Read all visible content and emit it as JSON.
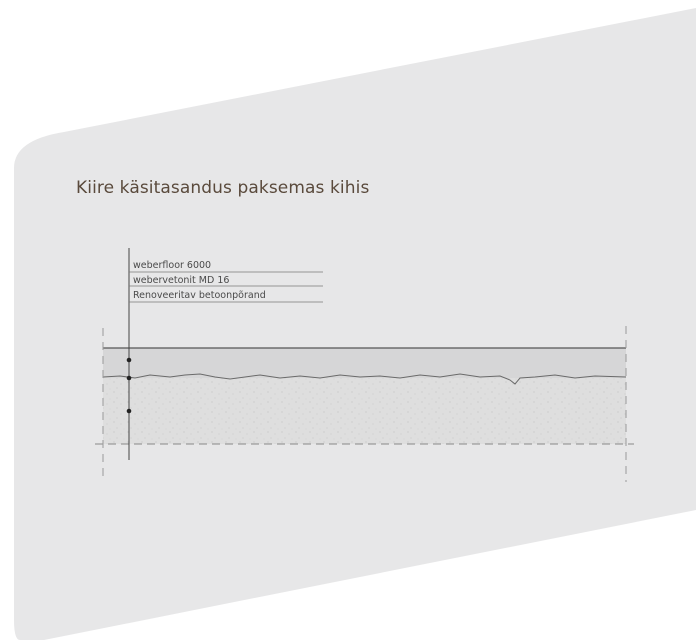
{
  "card": {
    "title": "Kiire käsitasandus paksemas kihis",
    "background_color": "#e7e7e8",
    "title_color": "#5a4a3c"
  },
  "diagram": {
    "layers": [
      {
        "label": "weberfloor 6000"
      },
      {
        "label": "webervetonit MD 16"
      },
      {
        "label": "Renoveeritav betoonpõrand"
      }
    ]
  }
}
